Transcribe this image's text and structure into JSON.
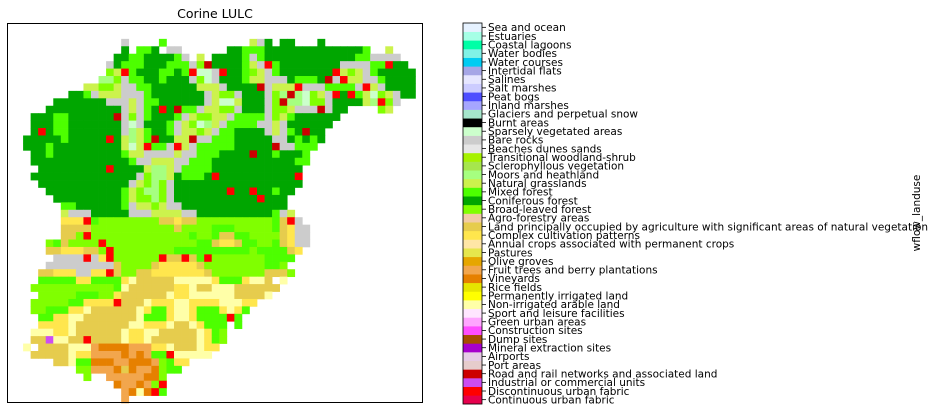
{
  "chart_data": {
    "type": "heatmap",
    "title": "Corine LULC",
    "colorbar_label": "wflow_landuse",
    "map_grid": {
      "cols": 55,
      "rows": 51
    },
    "classes": [
      {
        "label": "Continuous urban fabric",
        "color": "#e6004d"
      },
      {
        "label": "Discontinuous urban fabric",
        "color": "#ff0000"
      },
      {
        "label": "Industrial or commercial units",
        "color": "#cc4df2"
      },
      {
        "label": "Road and rail networks and associated land",
        "color": "#cc0000"
      },
      {
        "label": "Port areas",
        "color": "#e6cccc"
      },
      {
        "label": "Airports",
        "color": "#e6cce6"
      },
      {
        "label": "Mineral extraction sites",
        "color": "#a600cc"
      },
      {
        "label": "Dump sites",
        "color": "#a64d00"
      },
      {
        "label": "Construction sites",
        "color": "#ff4dff"
      },
      {
        "label": "Green urban areas",
        "color": "#ffa6ff"
      },
      {
        "label": "Sport and leisure facilities",
        "color": "#ffe6ff"
      },
      {
        "label": "Non-irrigated arable land",
        "color": "#ffffa8"
      },
      {
        "label": "Permanently irrigated land",
        "color": "#ffff00"
      },
      {
        "label": "Rice fields",
        "color": "#e6e600"
      },
      {
        "label": "Vineyards",
        "color": "#e68000"
      },
      {
        "label": "Fruit trees and berry plantations",
        "color": "#f2a64d"
      },
      {
        "label": "Olive groves",
        "color": "#e6a600"
      },
      {
        "label": "Pastures",
        "color": "#e6e64d"
      },
      {
        "label": "Annual crops associated with permanent crops",
        "color": "#ffe6a6"
      },
      {
        "label": "Complex cultivation patterns",
        "color": "#ffe64d"
      },
      {
        "label": "Land principally occupied by agriculture with significant areas of natural vegetation",
        "color": "#e6cc4d"
      },
      {
        "label": "Agro-forestry areas",
        "color": "#f2cca6"
      },
      {
        "label": "Broad-leaved forest",
        "color": "#80ff00"
      },
      {
        "label": "Coniferous forest",
        "color": "#00a600"
      },
      {
        "label": "Mixed forest",
        "color": "#4dff00"
      },
      {
        "label": "Natural grasslands",
        "color": "#ccf24d"
      },
      {
        "label": "Moors and heathland",
        "color": "#a6ff80"
      },
      {
        "label": "Sclerophyllous vegetation",
        "color": "#a6e64d"
      },
      {
        "label": "Transitional woodland-shrub",
        "color": "#a6f200"
      },
      {
        "label": "Beaches dunes sands",
        "color": "#e6e6e6"
      },
      {
        "label": "Bare rocks",
        "color": "#cccccc"
      },
      {
        "label": "Sparsely vegetated areas",
        "color": "#ccffcc"
      },
      {
        "label": "Burnt areas",
        "color": "#000000"
      },
      {
        "label": "Glaciers and perpetual snow",
        "color": "#a6e6cc"
      },
      {
        "label": "Inland marshes",
        "color": "#a6a6ff"
      },
      {
        "label": "Peat bogs",
        "color": "#4d4dff"
      },
      {
        "label": "Salt marshes",
        "color": "#ccccff"
      },
      {
        "label": "Salines",
        "color": "#e6e6ff"
      },
      {
        "label": "Intertidal flats",
        "color": "#a6a6e6"
      },
      {
        "label": "Water courses",
        "color": "#00ccf2"
      },
      {
        "label": "Water bodies",
        "color": "#80f2e6"
      },
      {
        "label": "Coastal lagoons",
        "color": "#00ffa6"
      },
      {
        "label": "Estuaries",
        "color": "#a6ffe6"
      },
      {
        "label": "Sea and ocean",
        "color": "#e6f2ff"
      }
    ]
  }
}
